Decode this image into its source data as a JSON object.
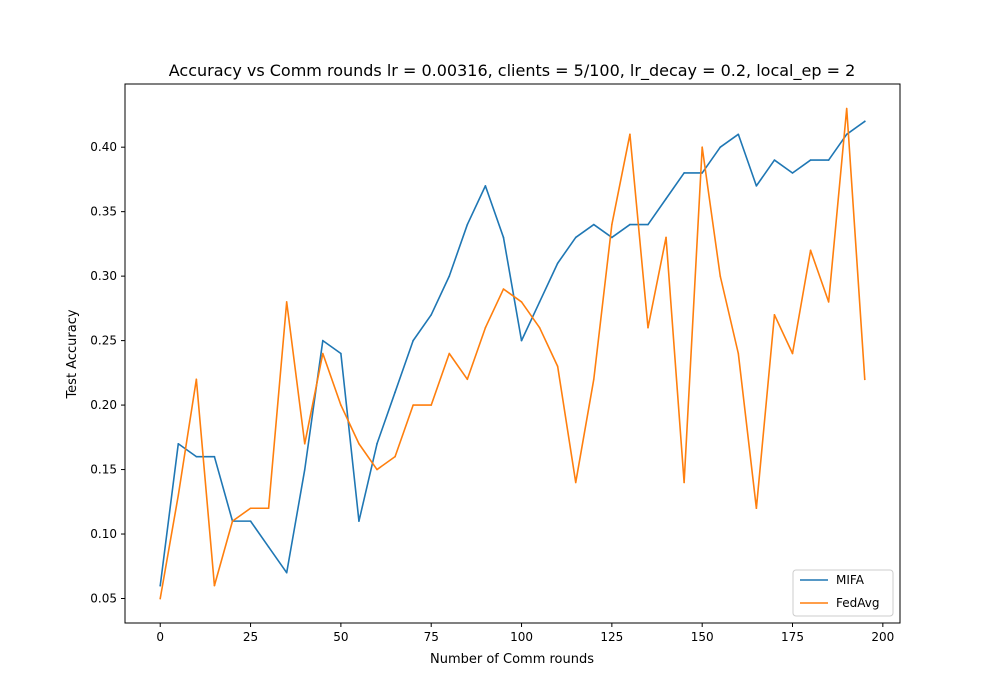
{
  "chart_data": {
    "type": "line",
    "title": "Accuracy vs Comm rounds lr = 0.00316, clients = 5/100, lr_decay = 0.2, local_ep = 2",
    "xlabel": "Number of Comm rounds",
    "ylabel": "Test Accuracy",
    "xlim": [
      -9.75,
      204.75
    ],
    "ylim": [
      0.031,
      0.449
    ],
    "xticks": [
      0,
      25,
      50,
      75,
      100,
      125,
      150,
      175,
      200
    ],
    "yticks": [
      0.05,
      0.1,
      0.15,
      0.2,
      0.25,
      0.3,
      0.35,
      0.4
    ],
    "ytick_labels": [
      "0.05",
      "0.10",
      "0.15",
      "0.20",
      "0.25",
      "0.30",
      "0.35",
      "0.40"
    ],
    "grid": false,
    "legend_position": "lower-right",
    "x": [
      0,
      5,
      10,
      15,
      20,
      25,
      30,
      35,
      40,
      45,
      50,
      55,
      60,
      65,
      70,
      75,
      80,
      85,
      90,
      95,
      100,
      105,
      110,
      115,
      120,
      125,
      130,
      135,
      140,
      145,
      150,
      155,
      160,
      165,
      170,
      175,
      180,
      185,
      190,
      195
    ],
    "series": [
      {
        "name": "MIFA",
        "color": "#1f77b4",
        "values": [
          0.06,
          0.17,
          0.16,
          0.16,
          0.11,
          0.11,
          0.09,
          0.07,
          0.15,
          0.25,
          0.24,
          0.11,
          0.17,
          0.21,
          0.25,
          0.27,
          0.3,
          0.34,
          0.37,
          0.33,
          0.25,
          0.28,
          0.31,
          0.33,
          0.34,
          0.33,
          0.34,
          0.34,
          0.36,
          0.38,
          0.38,
          0.4,
          0.41,
          0.37,
          0.39,
          0.38,
          0.39,
          0.39,
          0.41,
          0.42
        ]
      },
      {
        "name": "FedAvg",
        "color": "#ff7f0e",
        "values": [
          0.05,
          0.13,
          0.22,
          0.06,
          0.11,
          0.12,
          0.12,
          0.28,
          0.17,
          0.24,
          0.2,
          0.17,
          0.15,
          0.16,
          0.2,
          0.2,
          0.24,
          0.22,
          0.26,
          0.29,
          0.28,
          0.26,
          0.23,
          0.14,
          0.22,
          0.34,
          0.41,
          0.26,
          0.33,
          0.14,
          0.4,
          0.3,
          0.24,
          0.12,
          0.27,
          0.24,
          0.32,
          0.28,
          0.43,
          0.22
        ]
      }
    ]
  }
}
